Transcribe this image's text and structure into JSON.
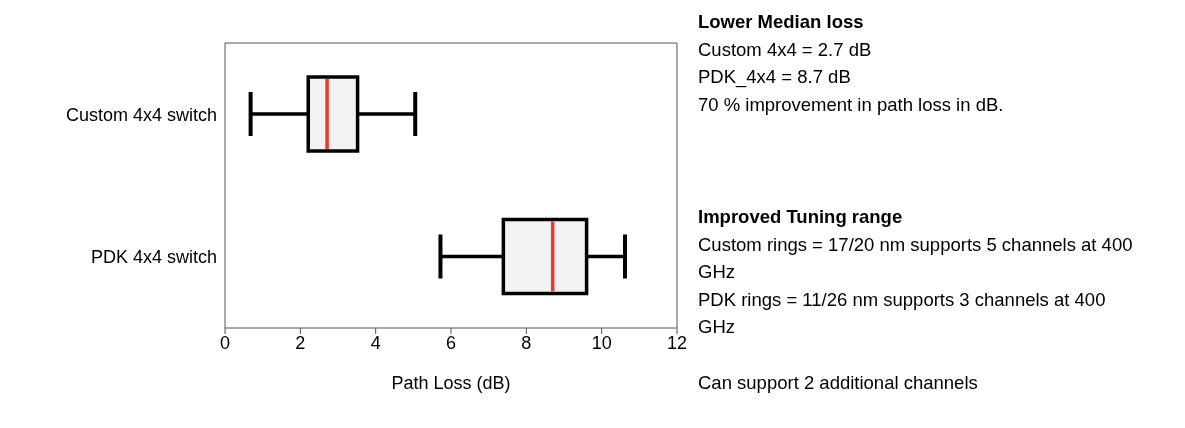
{
  "chart_data": {
    "type": "box",
    "orientation": "horizontal",
    "categories": [
      "Custom 4x4 switch",
      "PDK 4x4 switch"
    ],
    "color": "#f2f2f2",
    "boxes": [
      {
        "low": 0.68,
        "q1": 2.21,
        "median": 2.71,
        "q3": 3.52,
        "high": 5.05
      },
      {
        "low": 5.72,
        "q1": 7.39,
        "median": 8.7,
        "q3": 9.6,
        "high": 10.62
      }
    ],
    "xlim": [
      0,
      12
    ],
    "xticks": [
      0,
      2,
      4,
      6,
      8,
      10,
      12
    ],
    "xlabel": "Path Loss (dB)",
    "annotations": [
      "Lower Median loss",
      "Custom 4x4 = 2.7 dB",
      "PDK_4x4 = 8.7 dB",
      "70 % improvement in path loss in dB.",
      "Improved Tuning range",
      "Custom rings = 17/20 nm  supports 5 channels at 400 GHz",
      "PDK rings = 11/26 nm  supports 3 channels at 400 GHz",
      "Can support 2 additional channels"
    ]
  }
}
